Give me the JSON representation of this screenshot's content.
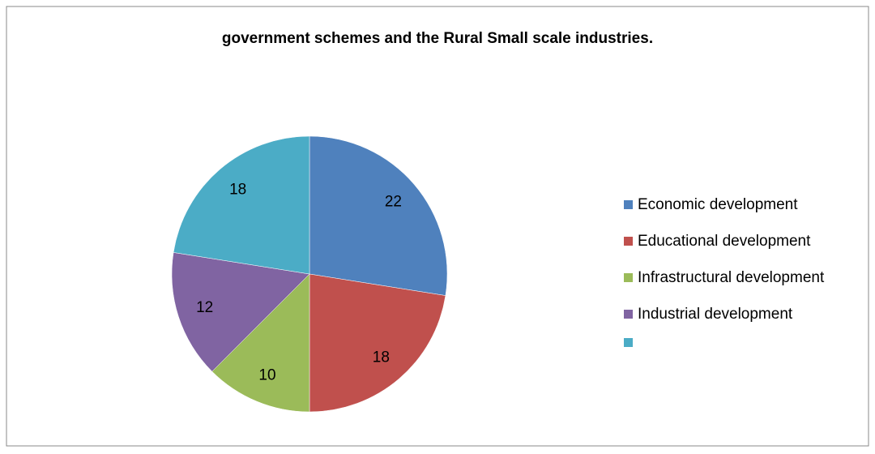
{
  "chart_data": {
    "type": "pie",
    "title": "government schemes and the Rural Small scale industries.",
    "categories": [
      "Economic development",
      "Educational development",
      "Infrastructural development",
      "Industrial development",
      null
    ],
    "values": [
      22,
      18,
      10,
      12,
      18
    ],
    "colors": [
      "#4f81bd",
      "#c0504d",
      "#9bbb59",
      "#8064a2",
      "#4bacc6"
    ],
    "legend": "right"
  }
}
